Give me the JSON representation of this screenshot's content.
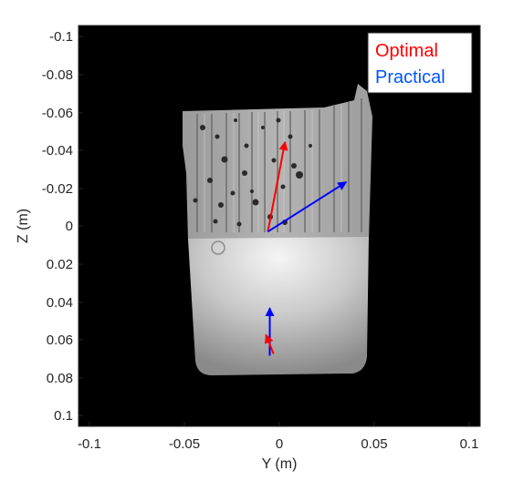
{
  "figure": {
    "xlabel": "Y (m)",
    "ylabel": "Z (m)",
    "x_ticks": [
      "-0.1",
      "-0.05",
      "0",
      "0.05",
      "0.1"
    ],
    "y_ticks": [
      "-0.1",
      "-0.08",
      "-0.06",
      "-0.04",
      "-0.02",
      "0",
      "0.02",
      "0.04",
      "0.06",
      "0.08",
      "0.1"
    ],
    "xlim": [
      -0.105,
      0.105
    ],
    "ylim": [
      -0.105,
      0.105
    ],
    "y_reversed": true,
    "background_color": "#000000",
    "legend": {
      "position": "top-right",
      "entries": [
        {
          "label": "Optimal",
          "color": "#ff0000"
        },
        {
          "label": "Practical",
          "color": "#0055ff"
        }
      ]
    },
    "arrows": [
      {
        "name": "optimal-arrow-upper",
        "series": "Optimal",
        "color": "#ff0000",
        "from": [
          -0.006,
          0.003
        ],
        "to": [
          0.003,
          -0.044
        ]
      },
      {
        "name": "practical-arrow-upper",
        "series": "Practical",
        "color": "#0000ff",
        "from": [
          -0.006,
          0.003
        ],
        "to": [
          0.035,
          -0.023
        ]
      },
      {
        "name": "practical-arrow-lower",
        "series": "Practical",
        "color": "#0000ff",
        "from": [
          -0.005,
          0.068
        ],
        "to": [
          -0.005,
          0.043
        ]
      },
      {
        "name": "optimal-arrow-lower",
        "series": "Optimal",
        "color": "#ff0000",
        "from": [
          -0.003,
          0.067
        ],
        "to": [
          -0.007,
          0.057
        ]
      }
    ]
  }
}
